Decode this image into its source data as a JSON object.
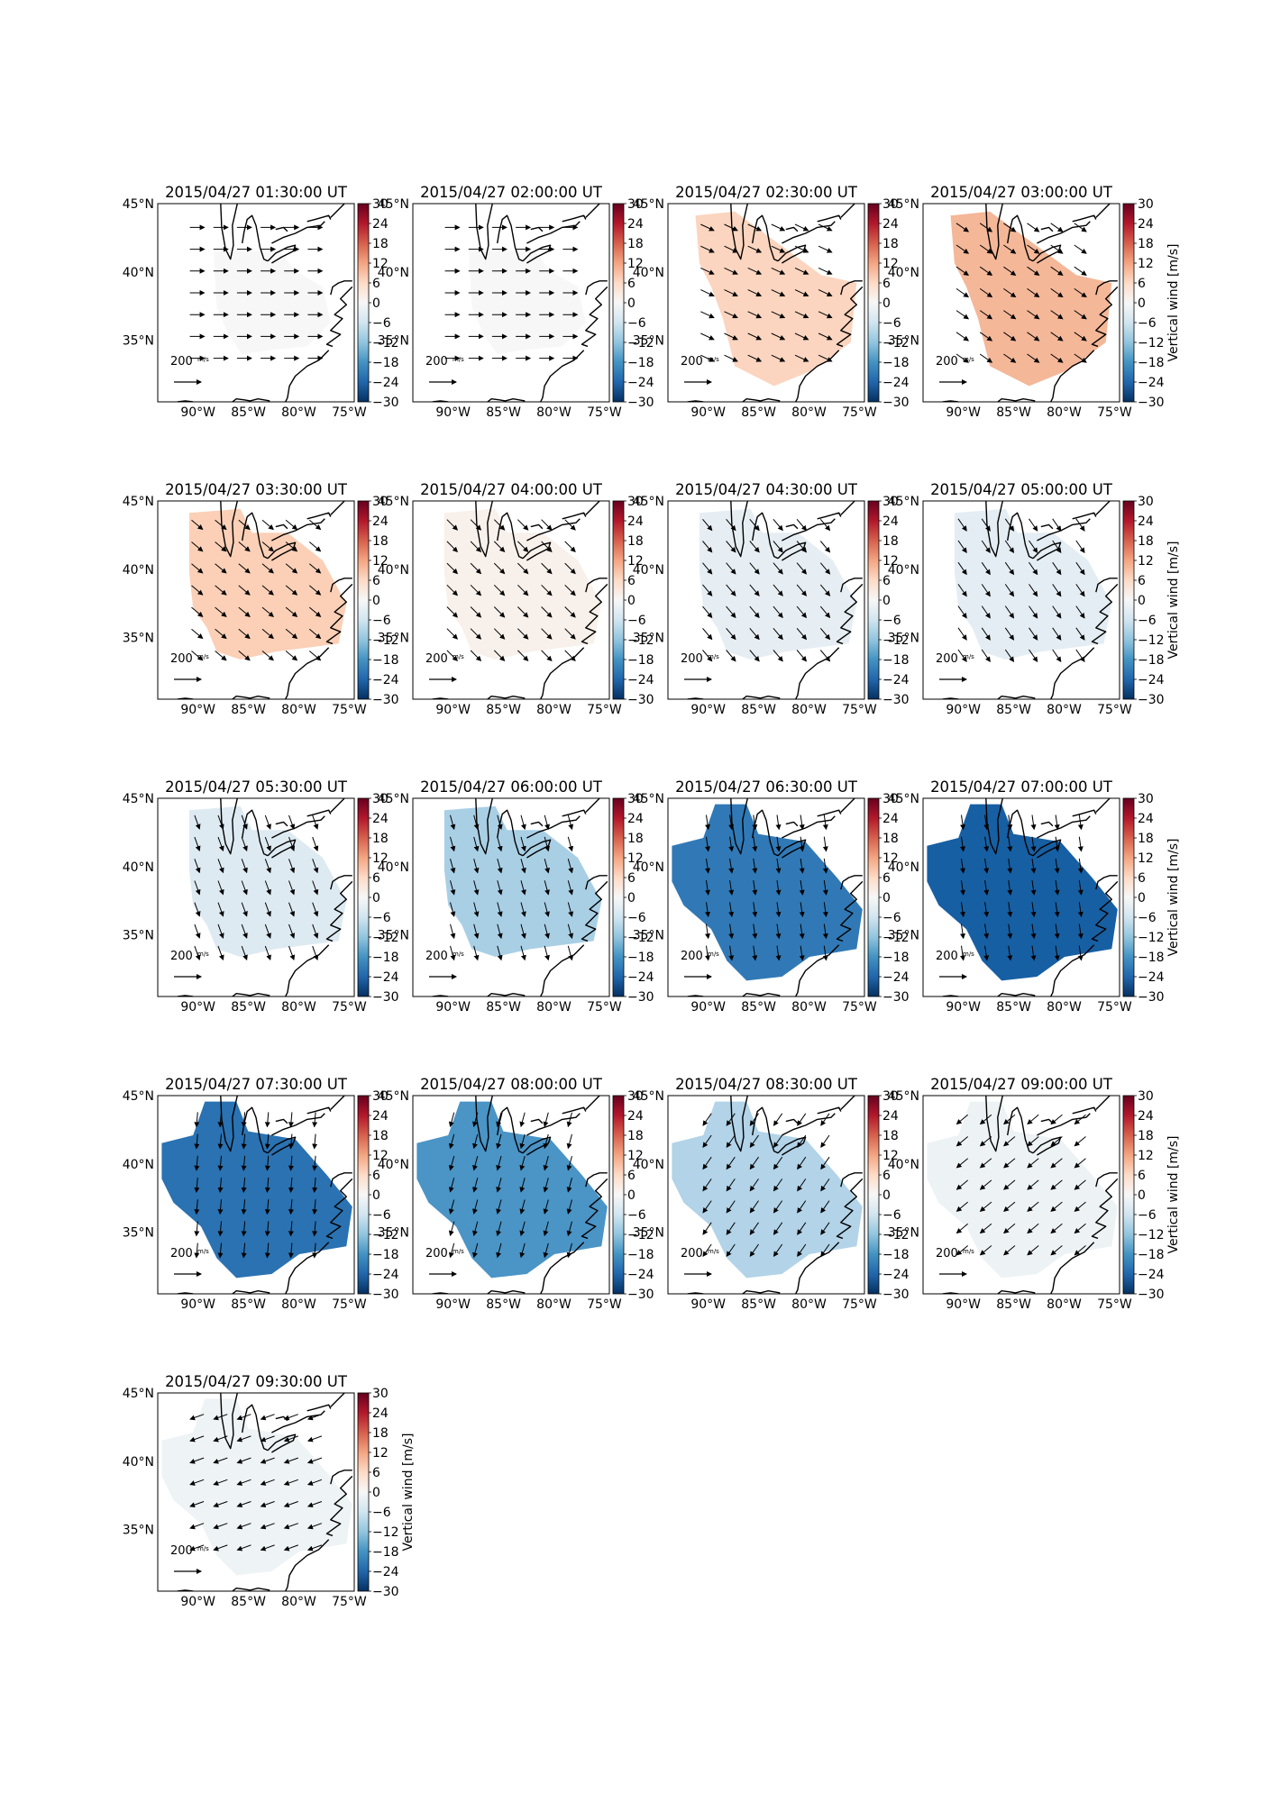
{
  "figure": {
    "colorbar_label": "Vertical wind [m/s]",
    "colorbar_ticks": [
      "30",
      "24",
      "18",
      "12",
      "6",
      "0",
      "−6",
      "−12",
      "−18",
      "−24",
      "−30"
    ],
    "lat_ticks": [
      "45°N",
      "40°N",
      "35°N"
    ],
    "lon_ticks": [
      "90°W",
      "85°W",
      "80°W",
      "75°W"
    ],
    "reference_arrow_label": "200",
    "reference_arrow_units": "m/s",
    "colormap": "RdBu_r"
  },
  "chart_data": [
    {
      "type": "heatmap",
      "title": "2015/04/27 01:30:00 UT",
      "value": 0.5,
      "color": "#f7f7f7",
      "wind_direction_deg": 0,
      "region": "small"
    },
    {
      "type": "heatmap",
      "title": "2015/04/27 02:00:00 UT",
      "value": 0.5,
      "color": "#f7f7f7",
      "wind_direction_deg": 0,
      "region": "small"
    },
    {
      "type": "heatmap",
      "title": "2015/04/27 02:30:00 UT",
      "value": 6,
      "color": "#fbd5bf",
      "wind_direction_deg": 25,
      "region": "medium"
    },
    {
      "type": "heatmap",
      "title": "2015/04/27 03:00:00 UT",
      "value": 9,
      "color": "#f4b798",
      "wind_direction_deg": 35,
      "region": "medium"
    },
    {
      "type": "heatmap",
      "title": "2015/04/27 03:30:00 UT",
      "value": 6,
      "color": "#fbd0b7",
      "wind_direction_deg": 40,
      "region": "large"
    },
    {
      "type": "heatmap",
      "title": "2015/04/27 04:00:00 UT",
      "value": 1,
      "color": "#f8f0ea",
      "wind_direction_deg": 45,
      "region": "large"
    },
    {
      "type": "heatmap",
      "title": "2015/04/27 04:30:00 UT",
      "value": -2,
      "color": "#e7eef3",
      "wind_direction_deg": 50,
      "region": "large"
    },
    {
      "type": "heatmap",
      "title": "2015/04/27 05:00:00 UT",
      "value": -2,
      "color": "#e4edf3",
      "wind_direction_deg": 55,
      "region": "large"
    },
    {
      "type": "heatmap",
      "title": "2015/04/27 05:30:00 UT",
      "value": -3,
      "color": "#deeaf2",
      "wind_direction_deg": 70,
      "region": "large"
    },
    {
      "type": "heatmap",
      "title": "2015/04/27 06:00:00 UT",
      "value": -9,
      "color": "#a9cfe5",
      "wind_direction_deg": 75,
      "region": "large"
    },
    {
      "type": "heatmap",
      "title": "2015/04/27 06:30:00 UT",
      "value": -22,
      "color": "#3079b6",
      "wind_direction_deg": 82,
      "region": "wide"
    },
    {
      "type": "heatmap",
      "title": "2015/04/27 07:00:00 UT",
      "value": -26,
      "color": "#175fa3",
      "wind_direction_deg": 82,
      "region": "wide"
    },
    {
      "type": "heatmap",
      "title": "2015/04/27 07:30:00 UT",
      "value": -23,
      "color": "#2a72b2",
      "wind_direction_deg": 95,
      "region": "wide"
    },
    {
      "type": "heatmap",
      "title": "2015/04/27 08:00:00 UT",
      "value": -17,
      "color": "#4a94c6",
      "wind_direction_deg": 105,
      "region": "wide"
    },
    {
      "type": "heatmap",
      "title": "2015/04/27 08:30:00 UT",
      "value": -8,
      "color": "#b2d3e8",
      "wind_direction_deg": 125,
      "region": "wide"
    },
    {
      "type": "heatmap",
      "title": "2015/04/27 09:00:00 UT",
      "value": -1,
      "color": "#edf2f5",
      "wind_direction_deg": 140,
      "region": "wide"
    },
    {
      "type": "heatmap",
      "title": "2015/04/27 09:30:00 UT",
      "value": -1,
      "color": "#eef3f6",
      "wind_direction_deg": 160,
      "region": "wide"
    }
  ]
}
